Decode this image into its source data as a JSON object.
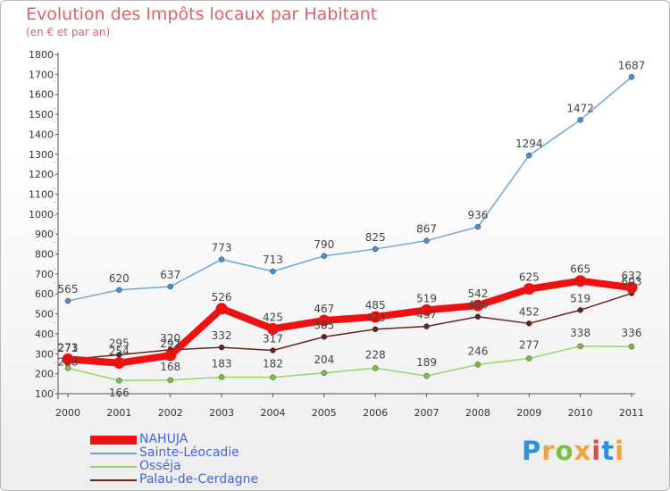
{
  "title": "Evolution des Impôts locaux par Habitant",
  "subtitle": "(en € et par an)",
  "logo": {
    "letters": [
      "P",
      "r",
      "o",
      "x",
      "i",
      "t",
      "i"
    ],
    "colors": [
      "#2f8fd8",
      "#f2a33a",
      "#7cc043",
      "#f2a33a",
      "#e24a4a",
      "#2f8fd8",
      "#f2a33a"
    ]
  },
  "chart_data": {
    "type": "line",
    "x": [
      "2000",
      "2001",
      "2002",
      "2003",
      "2004",
      "2005",
      "2006",
      "2007",
      "2008",
      "2009",
      "2010",
      "2011"
    ],
    "yticks": [
      "100",
      "200",
      "300",
      "400",
      "500",
      "600",
      "700",
      "800",
      "900",
      "1000",
      "1100",
      "1200",
      "1300",
      "1400",
      "1500",
      "1600",
      "1700",
      "1800"
    ],
    "ylim": [
      100,
      1800
    ],
    "grid": false,
    "legend_position": "bottom-left",
    "series": [
      {
        "name": "NAHUJA",
        "color": "#ee1111",
        "values": [
          273,
          254,
          292,
          526,
          425,
          467,
          485,
          519,
          542,
          625,
          665,
          632
        ],
        "labels": [
          "273",
          "254",
          "292",
          "526",
          "425",
          "467",
          "485",
          "519",
          "542",
          "625",
          "665",
          "632"
        ]
      },
      {
        "name": "Sainte-Léocadie",
        "color": "#6fa6d6",
        "values": [
          565,
          620,
          637,
          773,
          713,
          790,
          825,
          867,
          936,
          1294,
          1472,
          1687
        ],
        "labels": [
          "565",
          "620",
          "637",
          "773",
          "713",
          "790",
          "825",
          "867",
          "936",
          "1294",
          "1472",
          "1687"
        ]
      },
      {
        "name": "Osséja",
        "color": "#9ad46a",
        "values": [
          228,
          166,
          168,
          183,
          182,
          204,
          228,
          189,
          246,
          277,
          338,
          336
        ],
        "labels": [
          "228",
          "166",
          "168",
          "183",
          "182",
          "204",
          "228",
          "189",
          "246",
          "277",
          "338",
          "336"
        ]
      },
      {
        "name": "Palau-de-Cerdagne",
        "color": "#6b2020",
        "values": [
          271,
          295,
          320,
          332,
          317,
          385,
          423,
          437,
          486,
          452,
          519,
          603
        ],
        "labels": [
          "271",
          "295",
          "320",
          "332",
          "317",
          "385",
          "423",
          "437",
          "486",
          "452",
          "519",
          "603"
        ]
      }
    ]
  }
}
